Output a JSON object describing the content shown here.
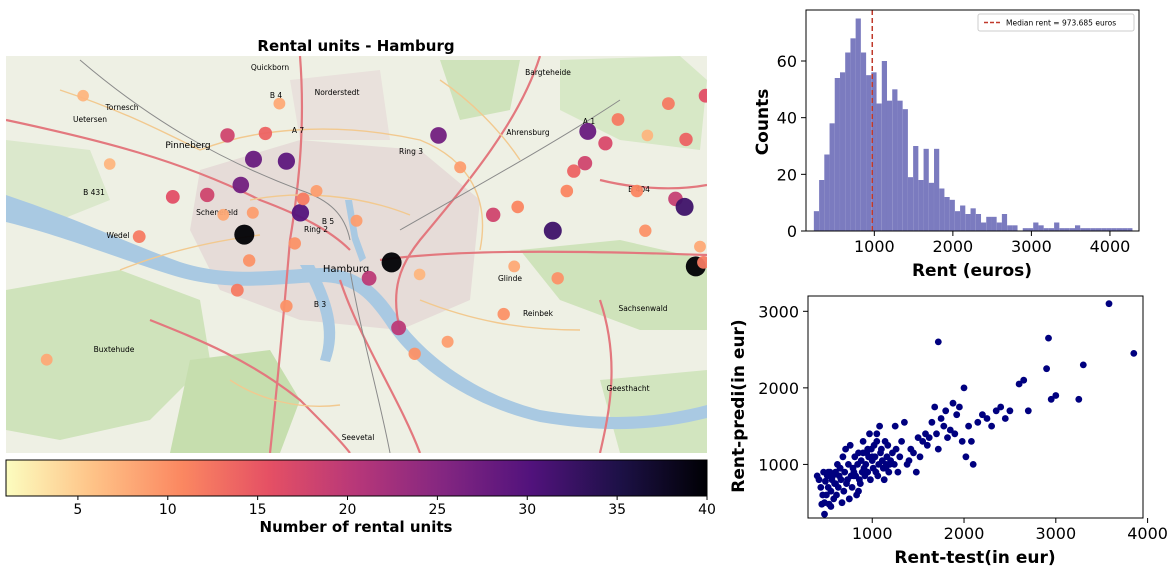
{
  "colors": {
    "map_water": "#b5d0e6",
    "map_land": "#eef0e4",
    "map_green": "#c8dfb2",
    "map_urban": "#e8dfdc",
    "road_major": "#e3787e",
    "road_secondary": "#f2c98f",
    "hist_bar": "#7b7bbf",
    "median_line": "#c0392b",
    "scatter_point": "#00007f"
  },
  "map": {
    "title": "Rental units - Hamburg",
    "place_labels": {
      "hamburg": "Hamburg",
      "pinneberg": "Pinneberg",
      "norderstedt": "Norderstedt",
      "ahrensburg": "Ahrensburg",
      "bargteheide": "Bargteheide",
      "quickborn": "Quickborn",
      "tornesch": "Tornesch",
      "uetersen": "Uetersen",
      "wedel": "Wedel",
      "schenefeld": "Schenefeld",
      "buxtehude": "Buxtehude",
      "seevetal": "Seevetal",
      "geesthacht": "Geesthacht",
      "reinbek": "Reinbek",
      "glinde": "Glinde",
      "sachsenwald": "Sachsenwald",
      "ring2": "Ring 2",
      "ring3": "Ring 3",
      "a7": "A 7",
      "a1": "A 1",
      "b4": "B 4",
      "b5": "B 5",
      "b3": "B 3",
      "b404": "B 404",
      "b431": "B 431"
    }
  },
  "colorbar": {
    "label": "Number of rental units",
    "min": 1,
    "max": 40,
    "ticks": [
      5,
      10,
      15,
      20,
      25,
      30,
      35,
      40
    ],
    "palette": [
      "#fcfdbf",
      "#fec287",
      "#fb8861",
      "#e55064",
      "#b73779",
      "#832681",
      "#51127c",
      "#1d1147",
      "#000004"
    ]
  },
  "chart_data": [
    {
      "type": "scatter",
      "title": "Rental units - Hamburg",
      "subtype": "map_bubble",
      "color_label": "Number of rental units",
      "color_range": [
        1,
        40
      ],
      "points": [
        {
          "x": 0.058,
          "y": 0.235,
          "v": 8
        },
        {
          "x": 0.11,
          "y": 0.9,
          "v": 7
        },
        {
          "x": 0.148,
          "y": 0.728,
          "v": 7
        },
        {
          "x": 0.19,
          "y": 0.545,
          "v": 12
        },
        {
          "x": 0.238,
          "y": 0.645,
          "v": 16
        },
        {
          "x": 0.287,
          "y": 0.65,
          "v": 18
        },
        {
          "x": 0.31,
          "y": 0.6,
          "v": 8
        },
        {
          "x": 0.316,
          "y": 0.8,
          "v": 18
        },
        {
          "x": 0.335,
          "y": 0.675,
          "v": 27
        },
        {
          "x": 0.34,
          "y": 0.55,
          "v": 40
        },
        {
          "x": 0.33,
          "y": 0.41,
          "v": 12
        },
        {
          "x": 0.347,
          "y": 0.485,
          "v": 10
        },
        {
          "x": 0.352,
          "y": 0.605,
          "v": 9
        },
        {
          "x": 0.353,
          "y": 0.74,
          "v": 28
        },
        {
          "x": 0.37,
          "y": 0.805,
          "v": 14
        },
        {
          "x": 0.39,
          "y": 0.88,
          "v": 8
        },
        {
          "x": 0.4,
          "y": 0.37,
          "v": 10
        },
        {
          "x": 0.4,
          "y": 0.735,
          "v": 29
        },
        {
          "x": 0.412,
          "y": 0.528,
          "v": 10
        },
        {
          "x": 0.42,
          "y": 0.605,
          "v": 30
        },
        {
          "x": 0.424,
          "y": 0.64,
          "v": 12
        },
        {
          "x": 0.443,
          "y": 0.66,
          "v": 9
        },
        {
          "x": 0.5,
          "y": 0.585,
          "v": 9
        },
        {
          "x": 0.518,
          "y": 0.44,
          "v": 20
        },
        {
          "x": 0.55,
          "y": 0.48,
          "v": 40
        },
        {
          "x": 0.56,
          "y": 0.315,
          "v": 20
        },
        {
          "x": 0.583,
          "y": 0.25,
          "v": 10
        },
        {
          "x": 0.59,
          "y": 0.45,
          "v": 7
        },
        {
          "x": 0.617,
          "y": 0.8,
          "v": 27
        },
        {
          "x": 0.63,
          "y": 0.28,
          "v": 9
        },
        {
          "x": 0.648,
          "y": 0.72,
          "v": 9
        },
        {
          "x": 0.695,
          "y": 0.6,
          "v": 18
        },
        {
          "x": 0.71,
          "y": 0.35,
          "v": 10
        },
        {
          "x": 0.725,
          "y": 0.47,
          "v": 8
        },
        {
          "x": 0.73,
          "y": 0.62,
          "v": 11
        },
        {
          "x": 0.78,
          "y": 0.56,
          "v": 32
        },
        {
          "x": 0.787,
          "y": 0.44,
          "v": 10
        },
        {
          "x": 0.8,
          "y": 0.66,
          "v": 11
        },
        {
          "x": 0.81,
          "y": 0.71,
          "v": 14
        },
        {
          "x": 0.826,
          "y": 0.73,
          "v": 18
        },
        {
          "x": 0.83,
          "y": 0.81,
          "v": 28
        },
        {
          "x": 0.855,
          "y": 0.78,
          "v": 17
        },
        {
          "x": 0.873,
          "y": 0.84,
          "v": 12
        },
        {
          "x": 0.9,
          "y": 0.66,
          "v": 11
        },
        {
          "x": 0.912,
          "y": 0.56,
          "v": 10
        },
        {
          "x": 0.915,
          "y": 0.8,
          "v": 7
        },
        {
          "x": 0.945,
          "y": 0.88,
          "v": 12
        },
        {
          "x": 0.955,
          "y": 0.64,
          "v": 19
        },
        {
          "x": 0.968,
          "y": 0.62,
          "v": 32
        },
        {
          "x": 0.99,
          "y": 0.52,
          "v": 8
        },
        {
          "x": 0.97,
          "y": 0.79,
          "v": 14
        },
        {
          "x": 0.984,
          "y": 0.47,
          "v": 40
        },
        {
          "x": 0.995,
          "y": 0.48,
          "v": 12
        },
        {
          "x": 0.998,
          "y": 0.9,
          "v": 16
        }
      ]
    },
    {
      "type": "bar",
      "subtype": "histogram",
      "xlabel": "Rent (euros)",
      "ylabel": "Counts",
      "xlim": [
        130,
        4370
      ],
      "ylim": [
        0,
        78
      ],
      "xticks": [
        1000,
        2000,
        3000,
        4000
      ],
      "yticks": [
        0,
        20,
        40,
        60
      ],
      "bin_width": 66.5,
      "bins": [
        {
          "x": 230,
          "count": 7
        },
        {
          "x": 297,
          "count": 18
        },
        {
          "x": 363,
          "count": 27
        },
        {
          "x": 430,
          "count": 38
        },
        {
          "x": 496,
          "count": 54
        },
        {
          "x": 563,
          "count": 56
        },
        {
          "x": 629,
          "count": 63
        },
        {
          "x": 696,
          "count": 68
        },
        {
          "x": 762,
          "count": 75
        },
        {
          "x": 829,
          "count": 63
        },
        {
          "x": 895,
          "count": 55
        },
        {
          "x": 962,
          "count": 56
        },
        {
          "x": 1028,
          "count": 45
        },
        {
          "x": 1095,
          "count": 60
        },
        {
          "x": 1161,
          "count": 46
        },
        {
          "x": 1228,
          "count": 50
        },
        {
          "x": 1294,
          "count": 46
        },
        {
          "x": 1361,
          "count": 43
        },
        {
          "x": 1427,
          "count": 19
        },
        {
          "x": 1494,
          "count": 30
        },
        {
          "x": 1560,
          "count": 18
        },
        {
          "x": 1627,
          "count": 29
        },
        {
          "x": 1693,
          "count": 17
        },
        {
          "x": 1760,
          "count": 29
        },
        {
          "x": 1826,
          "count": 15
        },
        {
          "x": 1893,
          "count": 12
        },
        {
          "x": 1959,
          "count": 11
        },
        {
          "x": 2026,
          "count": 7
        },
        {
          "x": 2092,
          "count": 9
        },
        {
          "x": 2159,
          "count": 6
        },
        {
          "x": 2225,
          "count": 8
        },
        {
          "x": 2292,
          "count": 6
        },
        {
          "x": 2358,
          "count": 3
        },
        {
          "x": 2425,
          "count": 5
        },
        {
          "x": 2491,
          "count": 5
        },
        {
          "x": 2558,
          "count": 3
        },
        {
          "x": 2624,
          "count": 6
        },
        {
          "x": 2691,
          "count": 2
        },
        {
          "x": 2757,
          "count": 2
        },
        {
          "x": 2824,
          "count": 0
        },
        {
          "x": 2890,
          "count": 1
        },
        {
          "x": 2957,
          "count": 1
        },
        {
          "x": 3023,
          "count": 3
        },
        {
          "x": 3090,
          "count": 2
        },
        {
          "x": 3156,
          "count": 1
        },
        {
          "x": 3223,
          "count": 1
        },
        {
          "x": 3289,
          "count": 3
        },
        {
          "x": 3356,
          "count": 1
        },
        {
          "x": 3422,
          "count": 1
        },
        {
          "x": 3489,
          "count": 1
        },
        {
          "x": 3555,
          "count": 2
        },
        {
          "x": 3622,
          "count": 1
        },
        {
          "x": 3688,
          "count": 1
        },
        {
          "x": 3755,
          "count": 1
        },
        {
          "x": 3821,
          "count": 1
        },
        {
          "x": 3888,
          "count": 1
        },
        {
          "x": 3954,
          "count": 1
        },
        {
          "x": 4021,
          "count": 1
        },
        {
          "x": 4087,
          "count": 1
        },
        {
          "x": 4154,
          "count": 1
        },
        {
          "x": 4220,
          "count": 1
        }
      ],
      "median": 973.685,
      "legend": "Median rent = 973.685 euros",
      "legend_position": "top-right"
    },
    {
      "type": "scatter",
      "xlabel": "Rent-test(in eur)",
      "ylabel": "Rent-predi(in eur)",
      "xlim": [
        300,
        3950
      ],
      "ylim": [
        300,
        3200
      ],
      "xticks": [
        1000,
        2000,
        3000,
        4000
      ],
      "yticks": [
        1000,
        2000,
        3000
      ],
      "x": [
        400,
        420,
        440,
        450,
        460,
        470,
        480,
        490,
        500,
        510,
        520,
        530,
        540,
        550,
        560,
        570,
        580,
        590,
        600,
        610,
        620,
        630,
        640,
        650,
        660,
        670,
        680,
        690,
        700,
        710,
        720,
        730,
        740,
        750,
        760,
        770,
        780,
        790,
        800,
        810,
        820,
        830,
        840,
        850,
        860,
        870,
        880,
        890,
        900,
        910,
        920,
        930,
        940,
        950,
        960,
        970,
        980,
        990,
        1000,
        1010,
        1020,
        1030,
        1040,
        1050,
        1060,
        1070,
        1080,
        1090,
        1100,
        1110,
        1120,
        1130,
        1140,
        1150,
        1160,
        1170,
        1180,
        1190,
        1200,
        1220,
        1240,
        1260,
        1280,
        1300,
        1320,
        1350,
        1380,
        1400,
        1420,
        1450,
        1480,
        1500,
        1520,
        1550,
        1580,
        1600,
        1620,
        1650,
        1680,
        1700,
        1720,
        1750,
        1780,
        1800,
        1820,
        1850,
        1880,
        1900,
        1920,
        1950,
        1980,
        2000,
        2020,
        2050,
        2080,
        2100,
        2150,
        2200,
        2250,
        2300,
        2350,
        2400,
        2450,
        2500,
        2600,
        2650,
        2700,
        2900,
        2920,
        2950,
        3000,
        3250,
        3300,
        3580,
        3850,
        1720,
        550,
        900,
        950,
        800,
        1050,
        1150,
        1250,
        850,
        750,
        650,
        1000,
        600,
        480,
        520
      ],
      "y": [
        850,
        800,
        700,
        480,
        600,
        900,
        500,
        780,
        600,
        850,
        700,
        480,
        900,
        650,
        800,
        850,
        550,
        750,
        900,
        600,
        1000,
        700,
        850,
        950,
        800,
        500,
        1100,
        650,
        900,
        1200,
        750,
        800,
        1000,
        550,
        1250,
        850,
        700,
        950,
        900,
        1100,
        850,
        600,
        1000,
        1150,
        800,
        750,
        1050,
        900,
        1300,
        950,
        850,
        1000,
        1150,
        900,
        1100,
        1400,
        800,
        1200,
        1050,
        950,
        1250,
        1100,
        900,
        1300,
        850,
        1000,
        1500,
        1150,
        1200,
        1050,
        950,
        800,
        1300,
        1000,
        1100,
        1250,
        900,
        1000,
        1050,
        1150,
        1000,
        1200,
        900,
        1100,
        1300,
        1550,
        1000,
        1050,
        1200,
        1150,
        900,
        1350,
        1100,
        1300,
        1400,
        1250,
        1350,
        1550,
        1750,
        1400,
        1200,
        1600,
        1500,
        1700,
        1350,
        1450,
        1800,
        1400,
        1650,
        1750,
        1300,
        2000,
        1100,
        1500,
        1300,
        1000,
        1550,
        1650,
        1600,
        1500,
        1700,
        1750,
        1600,
        1700,
        2050,
        2100,
        1700,
        2250,
        2650,
        1850,
        1900,
        1850,
        2300,
        3100,
        2450,
        2600,
        450,
        1150,
        1200,
        850,
        1400,
        950,
        1500,
        650,
        550,
        950,
        1100,
        750,
        350,
        900
      ]
    }
  ]
}
